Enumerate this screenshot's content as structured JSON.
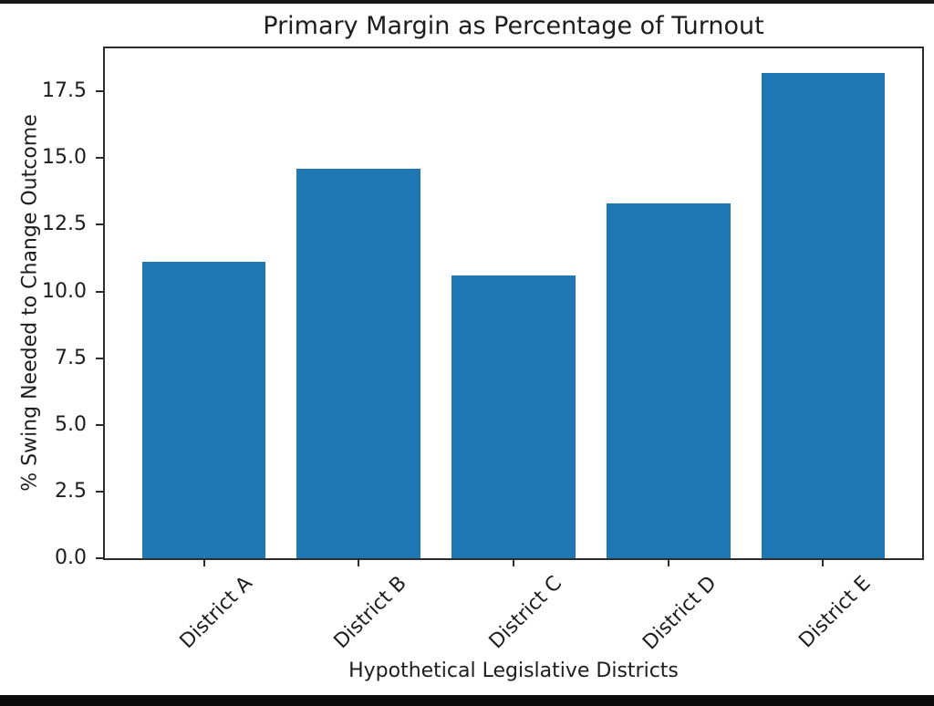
{
  "figure": {
    "background": "#ffffff",
    "frame_color": "#111111",
    "text_color": "#1d1d1d",
    "spine_color": "#2d2d2d"
  },
  "chart_data": {
    "type": "bar",
    "title": "Primary Margin as Percentage of Turnout",
    "xlabel": "Hypothetical Legislative Districts",
    "ylabel": "% Swing Needed to Change Outcome",
    "categories": [
      "District A",
      "District B",
      "District C",
      "District D",
      "District E"
    ],
    "values": [
      11.1,
      14.6,
      10.6,
      13.3,
      18.2
    ],
    "bar_color": "#1f77b4",
    "bar_width": 0.8,
    "ytick_labels": [
      "0.0",
      "2.5",
      "5.0",
      "7.5",
      "10.0",
      "12.5",
      "15.0",
      "17.5"
    ],
    "ytick_values": [
      0,
      2.5,
      5,
      7.5,
      10,
      12.5,
      15,
      17.5
    ],
    "ylim": [
      0,
      19.11
    ],
    "xlim": [
      -0.64,
      4.64
    ],
    "xtick_rotation_deg": 45,
    "grid": false,
    "legend": null
  }
}
